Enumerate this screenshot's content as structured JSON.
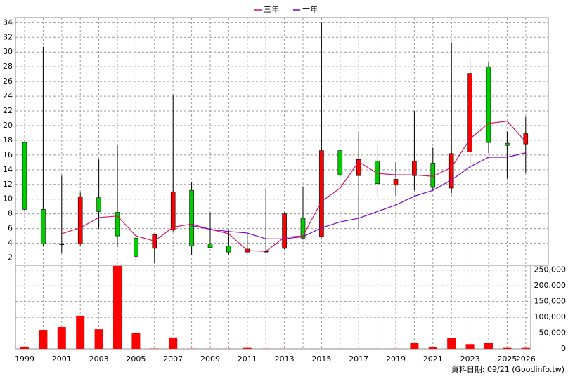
{
  "chart_data": [
    {
      "type": "candlestick",
      "open": [
        17.7,
        8.6,
        3.9,
        3.9,
        10.2,
        8.2,
        4.7,
        3.3,
        5.8,
        11.2,
        3.9,
        3.6,
        2.8,
        2.9,
        3.3,
        7.4,
        4.9,
        16.6,
        13.2,
        15.2,
        11.9,
        13.2,
        14.9,
        11.5,
        16.4,
        28.0,
        17.6,
        17.5
      ],
      "high": [
        17.8,
        30.7,
        13.2,
        10.9,
        15.4,
        17.4,
        5.0,
        5.3,
        24.1,
        12.3,
        8.1,
        5.8,
        5.3,
        11.5,
        8.2,
        11.7,
        34.0,
        16.6,
        19.2,
        17.4,
        15.0,
        22.0,
        17.0,
        31.3,
        29.0,
        28.6,
        19.2,
        21.2
      ],
      "low": [
        8.5,
        3.6,
        2.7,
        3.7,
        6.0,
        3.5,
        1.5,
        1.3,
        5.6,
        2.4,
        3.3,
        2.4,
        2.6,
        2.7,
        3.2,
        4.5,
        4.8,
        13.1,
        6.0,
        10.4,
        10.5,
        11.2,
        11.2,
        10.8,
        14.4,
        16.3,
        12.8,
        13.5
      ],
      "close": [
        8.6,
        3.9,
        3.9,
        10.3,
        8.3,
        5.0,
        2.2,
        5.2,
        11.0,
        3.6,
        3.4,
        2.8,
        3.2,
        2.9,
        8.0,
        4.7,
        16.6,
        13.3,
        15.4,
        12.1,
        12.7,
        15.2,
        11.6,
        16.2,
        27.1,
        17.7,
        17.3,
        18.9
      ],
      "up_color": "#ff0000",
      "down_color": "#00cc00",
      "series": [
        {
          "name": "三年",
          "color": "#d4145a",
          "values": [
            null,
            null,
            5.3,
            6.1,
            7.5,
            7.7,
            5.0,
            4.3,
            6.2,
            6.6,
            5.9,
            5.3,
            3.0,
            2.9,
            4.8,
            5.0,
            9.7,
            11.5,
            15.1,
            13.5,
            13.3,
            13.3,
            13.1,
            14.3,
            18.2,
            20.3,
            20.6,
            17.8
          ]
        },
        {
          "name": "十年",
          "color": "#7a00c8",
          "values": [
            null,
            null,
            null,
            null,
            null,
            null,
            null,
            null,
            null,
            6.4,
            5.9,
            5.6,
            5.4,
            4.6,
            4.6,
            4.9,
            6.1,
            6.9,
            7.4,
            8.3,
            9.2,
            10.4,
            11.2,
            12.6,
            14.4,
            15.7,
            15.7,
            16.3
          ]
        }
      ],
      "ylim": [
        1,
        34.7
      ],
      "yticks": [
        2,
        4,
        6,
        8,
        10,
        12,
        14,
        16,
        18,
        20,
        22,
        24,
        26,
        28,
        30,
        32,
        34
      ],
      "grid": true,
      "legend": "top"
    },
    {
      "type": "bar",
      "categories": [
        "1999",
        null,
        "2001",
        null,
        "2003",
        null,
        "2005",
        null,
        "2007",
        null,
        "2009",
        null,
        "2011",
        null,
        "2013",
        null,
        "2015",
        null,
        "2017",
        null,
        "2019",
        null,
        "2021",
        null,
        "2023",
        null,
        "2025",
        "2026"
      ],
      "values": [
        7000,
        60000,
        69000,
        105000,
        62000,
        263000,
        49000,
        1000,
        36000,
        500,
        300,
        500,
        3000,
        500,
        300,
        300,
        200,
        100,
        100,
        100,
        300,
        20000,
        5000,
        35000,
        15000,
        19000,
        3000,
        3000
      ],
      "color": "#ff0000",
      "ylim": [
        0,
        265000
      ],
      "yticks": [
        0,
        {
          "value": 50000,
          "label": "50,000"
        },
        {
          "value": 100000,
          "label": "100,000"
        },
        {
          "value": 150000,
          "label": "150,000"
        },
        {
          "value": 200000,
          "label": "200,000"
        },
        {
          "value": 250000,
          "label": "250,000"
        }
      ],
      "grid": true,
      "axis_side": "right"
    }
  ],
  "source": "資料日期: 09/21 (Goodinfo.tw)"
}
